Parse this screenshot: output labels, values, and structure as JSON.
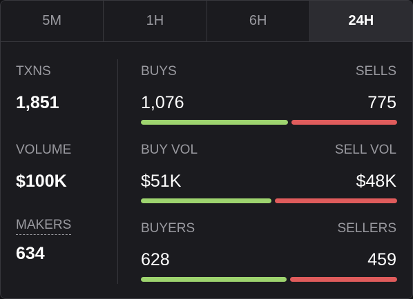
{
  "tabs": [
    "5M",
    "1H",
    "6H",
    "24H"
  ],
  "active_tab": 3,
  "summary": [
    {
      "label": "TXNS",
      "value": "1,851"
    },
    {
      "label": "VOLUME",
      "value": "$100K"
    },
    {
      "label": "MAKERS",
      "value": "634"
    }
  ],
  "rows": [
    {
      "left_label": "BUYS",
      "right_label": "SELLS",
      "left_value": 1076,
      "left_text": "1,076",
      "right_value": 775,
      "right_text": "775"
    },
    {
      "left_label": "BUY VOL",
      "right_label": "SELL VOL",
      "left_value": 51000,
      "left_text": "$51K",
      "right_value": 48000,
      "right_text": "$48K"
    },
    {
      "left_label": "BUYERS",
      "right_label": "SELLERS",
      "left_value": 628,
      "left_text": "628",
      "right_value": 459,
      "right_text": "459"
    }
  ],
  "colors": {
    "buy": "#9ed46f",
    "sell": "#e05c5c"
  }
}
